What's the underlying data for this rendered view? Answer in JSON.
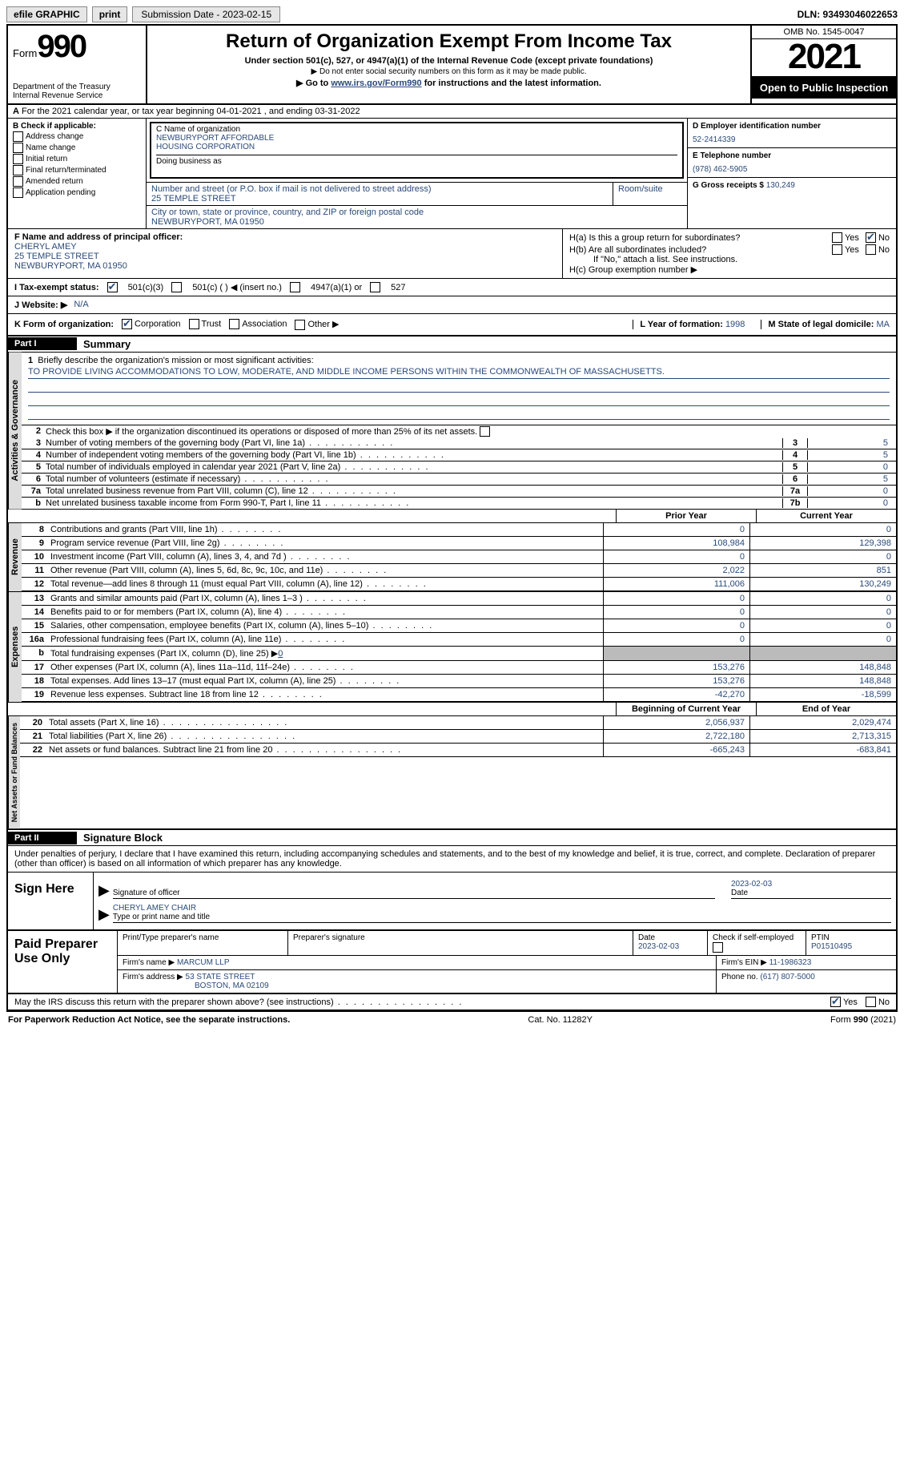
{
  "topbar": {
    "efile": "efile GRAPHIC",
    "print": "print",
    "submission_label": "Submission Date - 2023-02-15",
    "dln": "DLN: 93493046022653"
  },
  "header": {
    "form_word": "Form",
    "form_num": "990",
    "dept1": "Department of the Treasury",
    "dept2": "Internal Revenue Service",
    "title": "Return of Organization Exempt From Income Tax",
    "sub1": "Under section 501(c), 527, or 4947(a)(1) of the Internal Revenue Code (except private foundations)",
    "sub2": "▶ Do not enter social security numbers on this form as it may be made public.",
    "sub3_pre": "▶ Go to ",
    "sub3_link": "www.irs.gov/Form990",
    "sub3_post": " for instructions and the latest information.",
    "omb": "OMB No. 1545-0047",
    "year": "2021",
    "inspect": "Open to Public Inspection"
  },
  "rowA": {
    "text": "For the 2021 calendar year, or tax year beginning 04-01-2021   , and ending 03-31-2022",
    "label": "A"
  },
  "colB": {
    "title": "B Check if applicable:",
    "items": [
      "Address change",
      "Name change",
      "Initial return",
      "Final return/terminated",
      "Amended return",
      "Application pending"
    ]
  },
  "colC": {
    "name_label": "C Name of organization",
    "name1": "NEWBURYPORT AFFORDABLE",
    "name2": "HOUSING CORPORATION",
    "dba_label": "Doing business as",
    "addr_label": "Number and street (or P.O. box if mail is not delivered to street address)",
    "addr": "25 TEMPLE STREET",
    "room_label": "Room/suite",
    "city_label": "City or town, state or province, country, and ZIP or foreign postal code",
    "city": "NEWBURYPORT, MA  01950"
  },
  "colD": {
    "ein_label": "D Employer identification number",
    "ein": "52-2414339",
    "tel_label": "E Telephone number",
    "tel": "(978) 462-5905",
    "gross_label": "G Gross receipts $ ",
    "gross": "130,249"
  },
  "colF": {
    "label": "F Name and address of principal officer:",
    "l1": "CHERYL AMEY",
    "l2": "25 TEMPLE STREET",
    "l3": "NEWBURYPORT, MA  01950"
  },
  "colH": {
    "ha": "H(a)  Is this a group return for subordinates?",
    "hb": "H(b)  Are all subordinates included?",
    "hb_note": "If \"No,\" attach a list. See instructions.",
    "hc": "H(c)  Group exemption number ▶",
    "yes": "Yes",
    "no": "No"
  },
  "rowI": {
    "label": "I   Tax-exempt status:",
    "o1": "501(c)(3)",
    "o2": "501(c) (  ) ◀ (insert no.)",
    "o3": "4947(a)(1) or",
    "o4": "527"
  },
  "rowJ": {
    "label": "J   Website: ▶",
    "val": "N/A"
  },
  "rowK": {
    "label": "K Form of organization:",
    "o1": "Corporation",
    "o2": "Trust",
    "o3": "Association",
    "o4": "Other ▶",
    "l_label": "L Year of formation: ",
    "l_val": "1998",
    "m_label": "M State of legal domicile: ",
    "m_val": "MA"
  },
  "partI": {
    "num": "Part I",
    "title": "Summary"
  },
  "mission": {
    "q": "Briefly describe the organization's mission or most significant activities:",
    "text": "TO PROVIDE LIVING ACCOMMODATIONS TO LOW, MODERATE, AND MIDDLE INCOME PERSONS WITHIN THE COMMONWEALTH OF MASSACHUSETTS."
  },
  "gov": {
    "label": "Activities & Governance",
    "l2": "Check this box ▶       if the organization discontinued its operations or disposed of more than 25% of its net assets.",
    "rows": [
      {
        "n": "3",
        "t": "Number of voting members of the governing body (Part VI, line 1a)",
        "box": "3",
        "v": "5"
      },
      {
        "n": "4",
        "t": "Number of independent voting members of the governing body (Part VI, line 1b)",
        "box": "4",
        "v": "5"
      },
      {
        "n": "5",
        "t": "Total number of individuals employed in calendar year 2021 (Part V, line 2a)",
        "box": "5",
        "v": "0"
      },
      {
        "n": "6",
        "t": "Total number of volunteers (estimate if necessary)",
        "box": "6",
        "v": "5"
      },
      {
        "n": "7a",
        "t": "Total unrelated business revenue from Part VIII, column (C), line 12",
        "box": "7a",
        "v": "0"
      },
      {
        "n": "b",
        "t": "Net unrelated business taxable income from Form 990-T, Part I, line 11",
        "box": "7b",
        "v": "0"
      }
    ]
  },
  "colhdr": {
    "py": "Prior Year",
    "cy": "Current Year",
    "boy": "Beginning of Current Year",
    "eoy": "End of Year"
  },
  "rev": {
    "label": "Revenue",
    "rows": [
      {
        "n": "8",
        "t": "Contributions and grants (Part VIII, line 1h)",
        "v1": "0",
        "v2": "0"
      },
      {
        "n": "9",
        "t": "Program service revenue (Part VIII, line 2g)",
        "v1": "108,984",
        "v2": "129,398"
      },
      {
        "n": "10",
        "t": "Investment income (Part VIII, column (A), lines 3, 4, and 7d )",
        "v1": "0",
        "v2": "0"
      },
      {
        "n": "11",
        "t": "Other revenue (Part VIII, column (A), lines 5, 6d, 8c, 9c, 10c, and 11e)",
        "v1": "2,022",
        "v2": "851"
      },
      {
        "n": "12",
        "t": "Total revenue—add lines 8 through 11 (must equal Part VIII, column (A), line 12)",
        "v1": "111,006",
        "v2": "130,249"
      }
    ]
  },
  "exp": {
    "label": "Expenses",
    "rows": [
      {
        "n": "13",
        "t": "Grants and similar amounts paid (Part IX, column (A), lines 1–3 )",
        "v1": "0",
        "v2": "0"
      },
      {
        "n": "14",
        "t": "Benefits paid to or for members (Part IX, column (A), line 4)",
        "v1": "0",
        "v2": "0"
      },
      {
        "n": "15",
        "t": "Salaries, other compensation, employee benefits (Part IX, column (A), lines 5–10)",
        "v1": "0",
        "v2": "0"
      },
      {
        "n": "16a",
        "t": "Professional fundraising fees (Part IX, column (A), line 11e)",
        "v1": "0",
        "v2": "0"
      }
    ],
    "b_label": "b",
    "b_text": "Total fundraising expenses (Part IX, column (D), line 25) ▶",
    "b_val": "0",
    "rows2": [
      {
        "n": "17",
        "t": "Other expenses (Part IX, column (A), lines 11a–11d, 11f–24e)",
        "v1": "153,276",
        "v2": "148,848"
      },
      {
        "n": "18",
        "t": "Total expenses. Add lines 13–17 (must equal Part IX, column (A), line 25)",
        "v1": "153,276",
        "v2": "148,848"
      },
      {
        "n": "19",
        "t": "Revenue less expenses. Subtract line 18 from line 12",
        "v1": "-42,270",
        "v2": "-18,599"
      }
    ]
  },
  "net": {
    "label": "Net Assets or Fund Balances",
    "rows": [
      {
        "n": "20",
        "t": "Total assets (Part X, line 16)",
        "v1": "2,056,937",
        "v2": "2,029,474"
      },
      {
        "n": "21",
        "t": "Total liabilities (Part X, line 26)",
        "v1": "2,722,180",
        "v2": "2,713,315"
      },
      {
        "n": "22",
        "t": "Net assets or fund balances. Subtract line 21 from line 20",
        "v1": "-665,243",
        "v2": "-683,841"
      }
    ]
  },
  "partII": {
    "num": "Part II",
    "title": "Signature Block"
  },
  "sig": {
    "intro": "Under penalties of perjury, I declare that I have examined this return, including accompanying schedules and statements, and to the best of my knowledge and belief, it is true, correct, and complete. Declaration of preparer (other than officer) is based on all information of which preparer has any knowledge.",
    "sign_here": "Sign Here",
    "sig_label": "Signature of officer",
    "date_val": "2023-02-03",
    "date_label": "Date",
    "name_val": "CHERYL AMEY CHAIR",
    "name_label": "Type or print name and title"
  },
  "paid": {
    "left": "Paid Preparer Use Only",
    "h1": "Print/Type preparer's name",
    "h2": "Preparer's signature",
    "h3": "Date",
    "h3v": "2023-02-03",
    "h4": "Check        if self-employed",
    "h5": "PTIN",
    "h5v": "P01510495",
    "firm_label": "Firm's name    ▶",
    "firm": "MARCUM LLP",
    "ein_label": "Firm's EIN ▶",
    "ein": "11-1986323",
    "addr_label": "Firm's address ▶",
    "addr1": "53 STATE STREET",
    "addr2": "BOSTON, MA  02109",
    "phone_label": "Phone no. ",
    "phone": "(617) 807-5000"
  },
  "may": {
    "text": "May the IRS discuss this return with the preparer shown above? (see instructions)",
    "yes": "Yes",
    "no": "No"
  },
  "footer": {
    "left": "For Paperwork Reduction Act Notice, see the separate instructions.",
    "mid": "Cat. No. 11282Y",
    "right": "Form 990 (2021)"
  }
}
